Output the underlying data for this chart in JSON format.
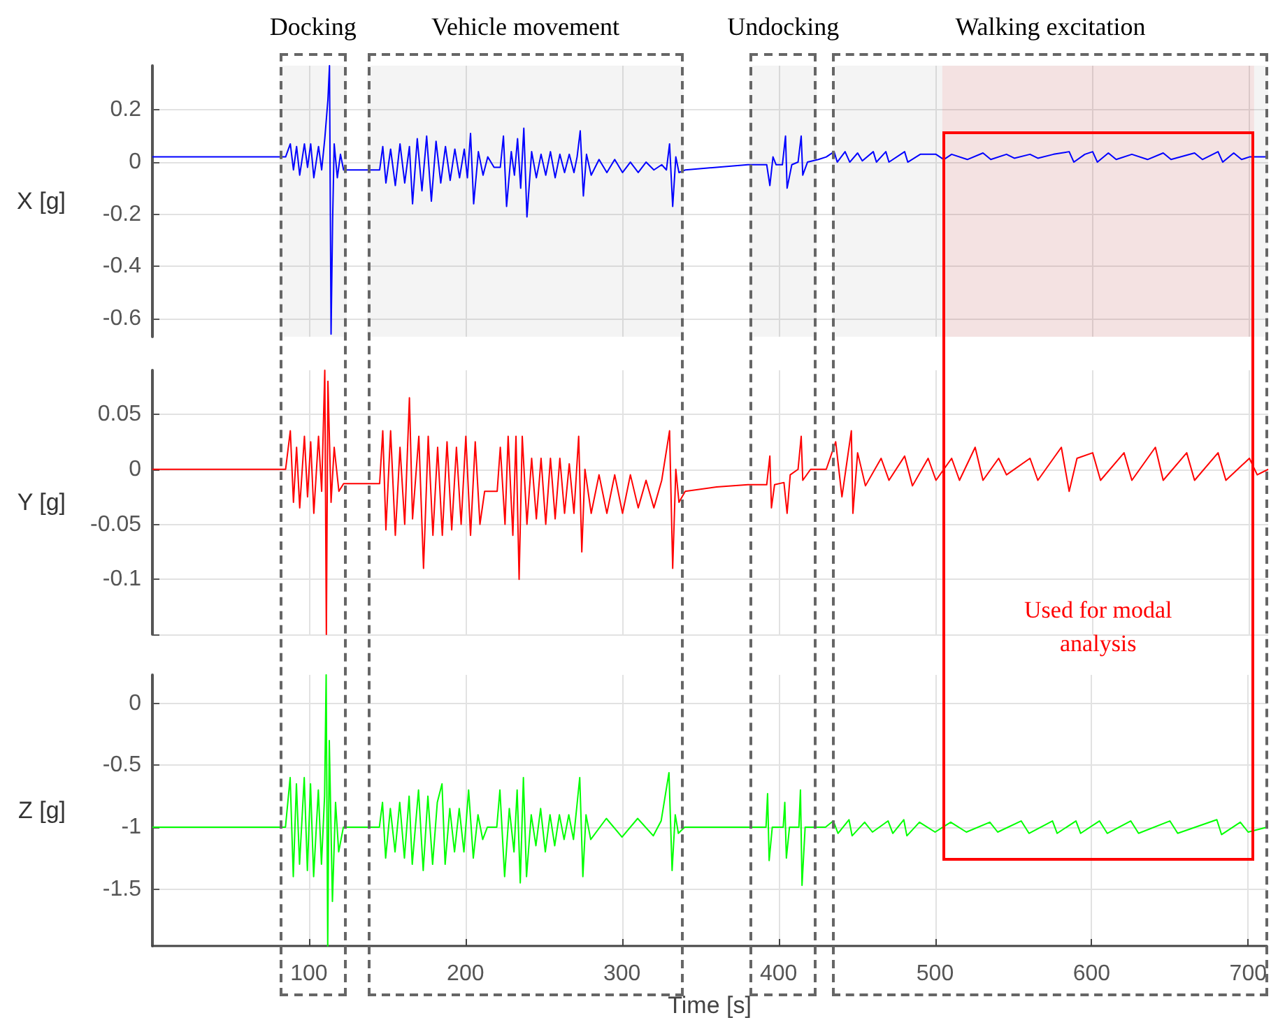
{
  "chart_data": [
    {
      "type": "line",
      "ylabel": "X [g]",
      "color": "#0000ff",
      "grid": true,
      "tick_labels": "y",
      "xlim": [
        0,
        712
      ],
      "xticks": [
        100,
        200,
        300,
        400,
        500,
        600,
        700
      ],
      "ylim": [
        -0.67,
        0.37
      ],
      "yticks": [
        -0.6,
        -0.4,
        -0.2,
        0,
        0.2
      ],
      "bands": [
        {
          "axis": "x",
          "from": 81,
          "to": 124,
          "label": "Docking",
          "color": "#666666"
        },
        {
          "axis": "x",
          "from": 137,
          "to": 339,
          "label": "Vehicle movement",
          "color": "#666666"
        },
        {
          "axis": "x",
          "from": 381,
          "to": 424,
          "label": "Undocking",
          "color": "#666666"
        },
        {
          "axis": "x",
          "from": 434,
          "to": 712,
          "label": "Walking excitation",
          "color": "#666666"
        },
        {
          "axis": "x",
          "from": 504,
          "to": 703,
          "label": "Used for modal analysis",
          "color": "#ff0000"
        }
      ],
      "x": [
        0,
        85,
        88,
        90,
        92,
        94,
        97,
        99,
        101,
        103,
        106,
        108,
        110,
        112,
        113,
        114,
        115,
        116,
        118,
        120,
        122,
        145,
        147,
        149,
        152,
        155,
        158,
        161,
        164,
        166,
        169,
        172,
        175,
        178,
        181,
        184,
        187,
        190,
        193,
        196,
        199,
        201,
        203,
        205,
        208,
        211,
        214,
        218,
        222,
        224,
        226,
        229,
        231,
        233,
        235,
        237,
        239,
        242,
        245,
        248,
        251,
        254,
        257,
        260,
        263,
        266,
        269,
        271,
        273,
        275,
        277,
        280,
        285,
        290,
        295,
        300,
        305,
        310,
        315,
        320,
        325,
        328,
        330,
        332,
        334,
        336,
        340,
        360,
        380,
        392,
        394,
        396,
        398,
        402,
        404,
        405,
        408,
        412,
        414,
        415,
        418,
        425,
        430,
        435,
        437,
        442,
        445,
        450,
        453,
        460,
        462,
        468,
        470,
        480,
        482,
        490,
        500,
        505,
        510,
        520,
        530,
        535,
        545,
        550,
        560,
        565,
        575,
        585,
        588,
        595,
        600,
        603,
        610,
        615,
        625,
        635,
        645,
        650,
        665,
        670,
        680,
        683,
        690,
        695,
        700,
        712
      ],
      "values": [
        0.02,
        0.02,
        0.07,
        -0.03,
        0.06,
        -0.05,
        0.07,
        -0.02,
        0.07,
        -0.06,
        0.06,
        -0.03,
        0.09,
        0.24,
        0.37,
        -0.66,
        -0.22,
        0.07,
        -0.06,
        0.03,
        -0.03,
        -0.03,
        0.06,
        -0.08,
        0.05,
        -0.09,
        0.07,
        -0.08,
        0.06,
        -0.16,
        0.09,
        -0.11,
        0.1,
        -0.15,
        0.08,
        -0.08,
        0.06,
        -0.07,
        0.05,
        -0.06,
        0.05,
        -0.06,
        0.11,
        -0.16,
        0.04,
        -0.05,
        0.02,
        -0.02,
        -0.02,
        0.1,
        -0.17,
        0.04,
        -0.05,
        0.09,
        -0.1,
        0.13,
        -0.21,
        0.04,
        -0.06,
        0.03,
        -0.05,
        0.04,
        -0.06,
        0.03,
        -0.04,
        0.03,
        -0.04,
        0.02,
        0.12,
        -0.13,
        0.03,
        -0.05,
        0.01,
        -0.04,
        0.01,
        -0.04,
        0.0,
        -0.04,
        0.0,
        -0.03,
        -0.01,
        -0.03,
        0.07,
        -0.17,
        0.02,
        -0.04,
        -0.03,
        -0.02,
        -0.01,
        -0.01,
        -0.09,
        0.02,
        -0.01,
        -0.01,
        0.1,
        -0.1,
        -0.01,
        0.0,
        0.1,
        -0.05,
        0.0,
        0.01,
        0.02,
        0.04,
        0.0,
        0.04,
        0.0,
        0.035,
        0.005,
        0.04,
        0.0,
        0.04,
        0.0,
        0.04,
        0.0,
        0.03,
        0.03,
        0.01,
        0.03,
        0.01,
        0.035,
        0.01,
        0.03,
        0.015,
        0.03,
        0.015,
        0.03,
        0.04,
        0.0,
        0.03,
        0.04,
        0.0,
        0.035,
        0.01,
        0.03,
        0.01,
        0.035,
        0.01,
        0.035,
        0.01,
        0.04,
        0.0,
        0.035,
        0.01,
        0.02,
        0.02
      ]
    },
    {
      "type": "line",
      "ylabel": "Y [g]",
      "color": "#ff0000",
      "grid": true,
      "tick_labels": "y",
      "xlim": [
        0,
        712
      ],
      "xticks": [
        100,
        200,
        300,
        400,
        500,
        600,
        700
      ],
      "ylim": [
        -0.15,
        0.09
      ],
      "yticks": [
        {
          "value": -0.15,
          "label": null
        },
        -0.1,
        -0.05,
        0,
        0.05
      ],
      "x": [
        0,
        85,
        88,
        90,
        92,
        94,
        97,
        99,
        101,
        103,
        106,
        108,
        110,
        111,
        112,
        114,
        116,
        119,
        122,
        145,
        147,
        149,
        152,
        155,
        158,
        161,
        164,
        166,
        170,
        173,
        176,
        179,
        182,
        185,
        188,
        191,
        194,
        197,
        200,
        203,
        206,
        209,
        212,
        220,
        222,
        225,
        227,
        230,
        232,
        234,
        236,
        239,
        242,
        245,
        248,
        251,
        254,
        257,
        260,
        263,
        266,
        269,
        272,
        274,
        276,
        280,
        285,
        290,
        295,
        300,
        305,
        310,
        315,
        320,
        325,
        330,
        332,
        334,
        336,
        340,
        360,
        380,
        392,
        394,
        395,
        397,
        403,
        405,
        407,
        412,
        414,
        415,
        420,
        430,
        436,
        440,
        446,
        447,
        450,
        455,
        465,
        470,
        480,
        485,
        495,
        500,
        510,
        515,
        525,
        530,
        540,
        545,
        560,
        565,
        580,
        585,
        590,
        600,
        605,
        620,
        625,
        640,
        645,
        660,
        665,
        680,
        685,
        700,
        705,
        712
      ],
      "values": [
        0.0,
        0.0,
        0.035,
        -0.03,
        0.02,
        -0.035,
        0.03,
        -0.025,
        0.025,
        -0.04,
        0.03,
        -0.02,
        0.09,
        -0.15,
        0.08,
        -0.03,
        0.02,
        -0.02,
        -0.013,
        -0.013,
        0.035,
        -0.055,
        0.035,
        -0.06,
        0.02,
        -0.05,
        0.065,
        -0.045,
        0.03,
        -0.09,
        0.03,
        -0.06,
        0.02,
        -0.06,
        0.025,
        -0.055,
        0.02,
        -0.05,
        0.03,
        -0.06,
        0.025,
        -0.05,
        -0.02,
        -0.02,
        0.02,
        -0.05,
        0.03,
        -0.06,
        0.03,
        -0.1,
        0.03,
        -0.05,
        0.01,
        -0.045,
        0.01,
        -0.05,
        0.01,
        -0.045,
        0.01,
        -0.04,
        0.005,
        -0.04,
        0.03,
        -0.075,
        0.0,
        -0.04,
        -0.005,
        -0.04,
        -0.005,
        -0.04,
        -0.005,
        -0.035,
        -0.01,
        -0.035,
        -0.01,
        0.035,
        -0.09,
        0.0,
        -0.03,
        -0.02,
        -0.016,
        -0.014,
        -0.014,
        0.012,
        -0.035,
        -0.014,
        -0.012,
        -0.04,
        -0.005,
        0.0,
        0.03,
        -0.01,
        0.0,
        0.0,
        0.025,
        -0.025,
        0.035,
        -0.04,
        0.015,
        -0.015,
        0.01,
        -0.01,
        0.012,
        -0.015,
        0.01,
        -0.01,
        0.01,
        -0.01,
        0.02,
        -0.01,
        0.01,
        -0.005,
        0.01,
        -0.01,
        0.02,
        -0.02,
        0.01,
        0.015,
        -0.01,
        0.015,
        -0.01,
        0.02,
        -0.01,
        0.015,
        -0.01,
        0.015,
        -0.01,
        0.01,
        -0.005,
        0.0
      ]
    },
    {
      "type": "line",
      "ylabel": "Z [g]",
      "xlabel": "Time [s]",
      "color": "#00ff00",
      "grid": true,
      "xlim": [
        0,
        712
      ],
      "xticks": [
        100,
        200,
        300,
        400,
        500,
        600,
        700
      ],
      "ylim": [
        -1.96,
        0.23
      ],
      "yticks": [
        -1.5,
        -1,
        -0.5,
        0
      ],
      "x": [
        0,
        85,
        88,
        90,
        92,
        94,
        97,
        99,
        101,
        103,
        106,
        108,
        110,
        111,
        112,
        113,
        115,
        117,
        119,
        122,
        145,
        147,
        149,
        152,
        155,
        158,
        161,
        164,
        166,
        170,
        173,
        176,
        179,
        182,
        185,
        187,
        190,
        193,
        196,
        199,
        202,
        205,
        208,
        211,
        214,
        220,
        222,
        225,
        228,
        231,
        233,
        235,
        237,
        239,
        242,
        245,
        248,
        251,
        254,
        257,
        260,
        263,
        266,
        269,
        273,
        275,
        277,
        280,
        290,
        300,
        310,
        320,
        325,
        330,
        332,
        334,
        336,
        340,
        392,
        393,
        394,
        396,
        403,
        404,
        405,
        407,
        413,
        414,
        415,
        417,
        430,
        435,
        438,
        445,
        447,
        455,
        460,
        470,
        473,
        480,
        482,
        490,
        500,
        510,
        520,
        535,
        540,
        555,
        560,
        575,
        578,
        590,
        593,
        605,
        610,
        625,
        630,
        650,
        655,
        680,
        683,
        695,
        700,
        712
      ],
      "values": [
        -1,
        -1,
        -0.6,
        -1.4,
        -0.65,
        -1.3,
        -0.6,
        -1.35,
        -0.65,
        -1.4,
        -0.7,
        -1.3,
        -0.75,
        0.23,
        -1.96,
        -0.3,
        -1.6,
        -0.8,
        -1.2,
        -1.0,
        -1.0,
        -0.8,
        -1.25,
        -0.85,
        -1.2,
        -0.8,
        -1.25,
        -0.75,
        -1.3,
        -0.7,
        -1.35,
        -0.75,
        -1.3,
        -0.8,
        -0.65,
        -1.3,
        -0.85,
        -1.2,
        -0.85,
        -1.2,
        -0.7,
        -1.25,
        -0.9,
        -1.1,
        -1.0,
        -1.0,
        -0.7,
        -1.4,
        -0.85,
        -1.2,
        -0.7,
        -1.45,
        -0.6,
        -1.4,
        -0.9,
        -1.15,
        -0.85,
        -1.2,
        -0.9,
        -1.15,
        -0.9,
        -1.1,
        -0.9,
        -1.1,
        -0.6,
        -1.4,
        -0.9,
        -1.1,
        -0.93,
        -1.08,
        -0.93,
        -1.07,
        -0.95,
        -0.56,
        -1.35,
        -0.9,
        -1.05,
        -1.0,
        -1.0,
        -0.73,
        -1.27,
        -1.0,
        -1.0,
        -0.8,
        -1.25,
        -1.0,
        -1.0,
        -0.7,
        -1.47,
        -1.0,
        -1.0,
        -0.95,
        -1.05,
        -0.94,
        -1.07,
        -0.96,
        -1.04,
        -0.95,
        -1.05,
        -0.94,
        -1.07,
        -0.96,
        -1.04,
        -0.96,
        -1.04,
        -0.96,
        -1.04,
        -0.95,
        -1.05,
        -0.95,
        -1.05,
        -0.95,
        -1.05,
        -0.95,
        -1.05,
        -0.95,
        -1.05,
        -0.95,
        -1.05,
        -0.94,
        -1.06,
        -0.96,
        -1.04,
        -1.0
      ]
    }
  ]
}
